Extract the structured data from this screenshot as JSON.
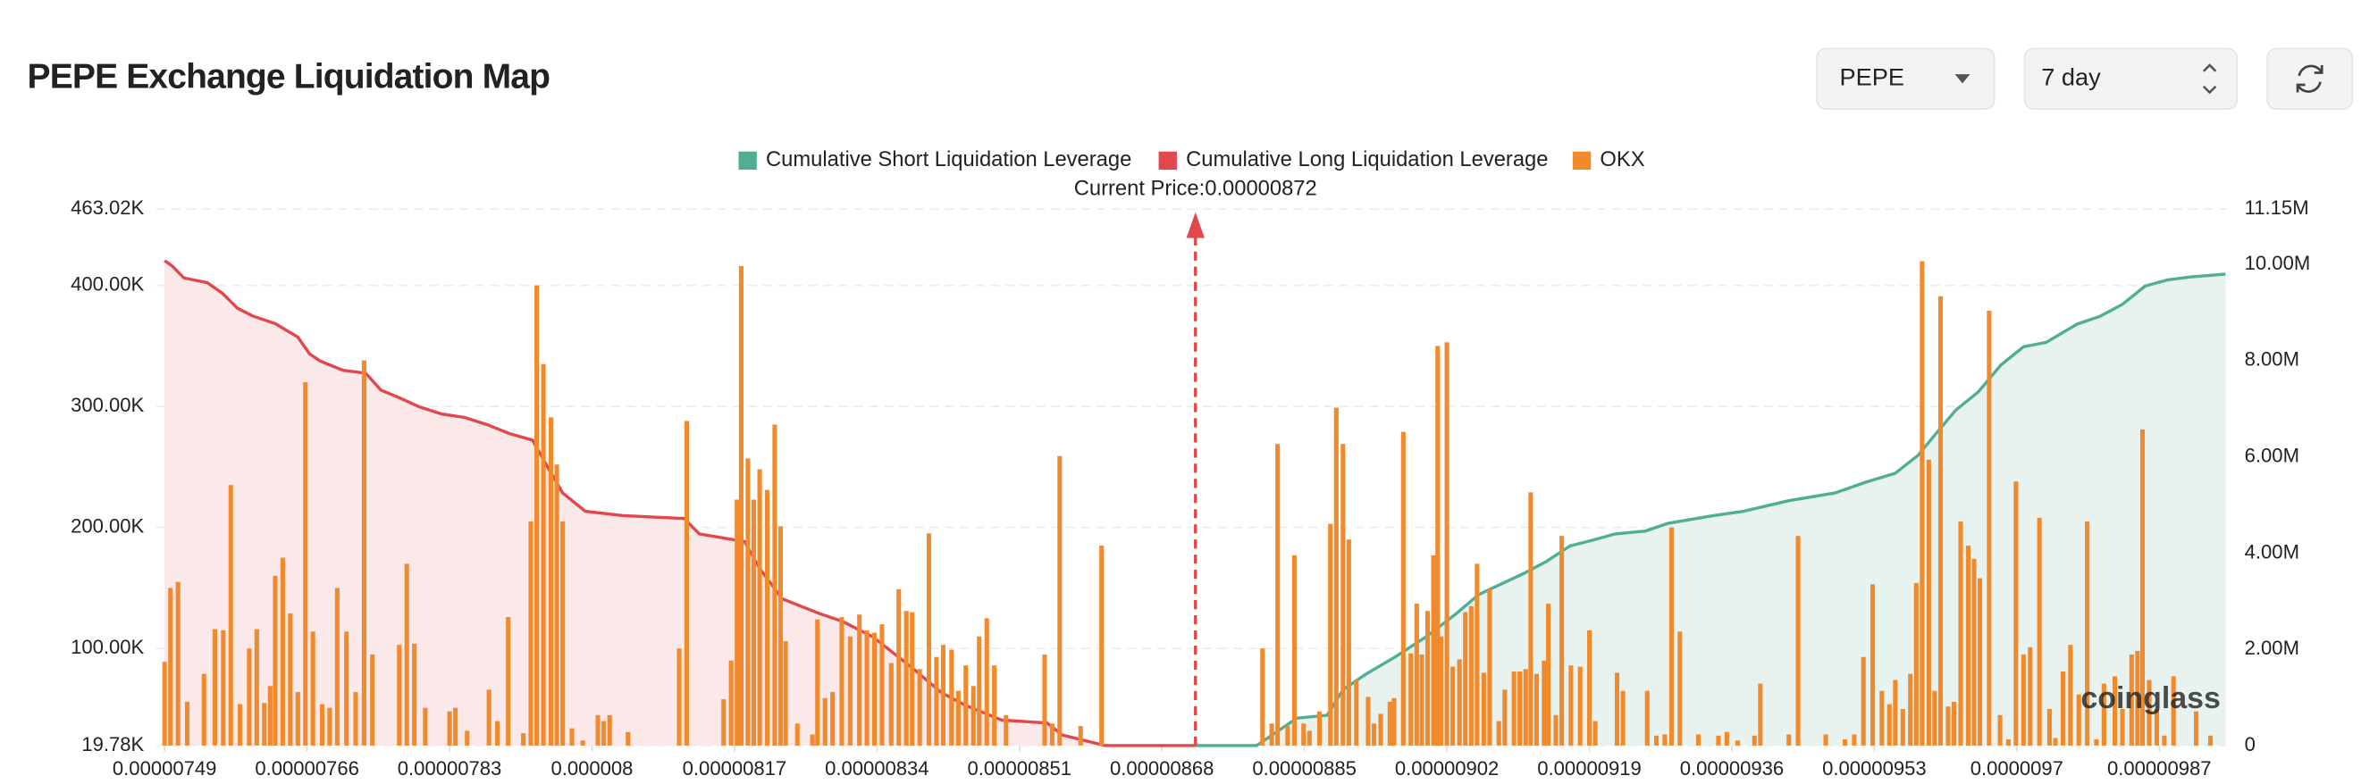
{
  "chart_data": {
    "type": "combo",
    "title": "PEPE Exchange Liquidation Map",
    "current_price": {
      "value": 8.72e-06,
      "label": "Current Price:0.00000872"
    },
    "watermark": "coinglass",
    "xlim": [
      7.48e-06,
      9.95e-06
    ],
    "xticks": [
      {
        "value": 7.49e-06,
        "label": "0.00000749"
      },
      {
        "value": 7.66e-06,
        "label": "0.00000766"
      },
      {
        "value": 7.83e-06,
        "label": "0.00000783"
      },
      {
        "value": 8e-06,
        "label": "0.000008"
      },
      {
        "value": 8.17e-06,
        "label": "0.00000817"
      },
      {
        "value": 8.34e-06,
        "label": "0.00000834"
      },
      {
        "value": 8.51e-06,
        "label": "0.00000851"
      },
      {
        "value": 8.68e-06,
        "label": "0.00000868"
      },
      {
        "value": 8.85e-06,
        "label": "0.00000885"
      },
      {
        "value": 9.02e-06,
        "label": "0.00000902"
      },
      {
        "value": 9.19e-06,
        "label": "0.00000919"
      },
      {
        "value": 9.36e-06,
        "label": "0.00000936"
      },
      {
        "value": 9.53e-06,
        "label": "0.00000953"
      },
      {
        "value": 9.7e-06,
        "label": "0.0000097"
      },
      {
        "value": 9.87e-06,
        "label": "0.00000987"
      }
    ],
    "ylim": [
      19780,
      463020
    ],
    "yticks": [
      {
        "value": 19780,
        "label": "19.78K"
      },
      {
        "value": 100000,
        "label": "100.00K"
      },
      {
        "value": 200000,
        "label": "200.00K"
      },
      {
        "value": 300000,
        "label": "300.00K"
      },
      {
        "value": 400000,
        "label": "400.00K"
      },
      {
        "value": 463020,
        "label": "463.02K"
      }
    ],
    "y2lim": [
      0,
      11150000
    ],
    "y2ticks": [
      0,
      {
        "value": 2000000,
        "label": "2.00M"
      },
      {
        "value": 4000000,
        "label": "4.00M"
      },
      {
        "value": 6000000,
        "label": "6.00M"
      },
      {
        "value": 8000000,
        "label": "8.00M"
      },
      {
        "value": 10000000,
        "label": "10.00M"
      },
      {
        "value": 11150000,
        "label": "11.15M"
      }
    ],
    "grid": true,
    "series": [
      {
        "name": "Cumulative Short Liquidation Leverage",
        "type": "line",
        "axis": "y2",
        "color": "#4fae93",
        "fill": "#e8f3f0",
        "x": [
          8.72e-06,
          8.793e-06,
          8.814e-06,
          8.841e-06,
          8.877e-06,
          8.896e-06,
          8.923e-06,
          8.959e-06,
          8.995e-06,
          9.031e-06,
          9.058e-06,
          9.085e-06,
          9.112e-06,
          9.139e-06,
          9.167e-06,
          9.194e-06,
          9.221e-06,
          9.257e-06,
          9.284e-06,
          9.338e-06,
          9.374e-06,
          9.428e-06,
          9.483e-06,
          9.519e-06,
          9.555e-06,
          9.582e-06,
          9.6e-06,
          9.627e-06,
          9.654e-06,
          9.681e-06,
          9.708e-06,
          9.735e-06,
          9.772e-06,
          9.799e-06,
          9.826e-06,
          9.853e-06,
          9.88e-06,
          9.907e-06,
          9.949e-06
        ],
        "values": [
          0,
          0,
          250000,
          570000,
          630000,
          1160000,
          1480000,
          1850000,
          2260000,
          2740000,
          3140000,
          3360000,
          3580000,
          3830000,
          4150000,
          4270000,
          4400000,
          4460000,
          4620000,
          4780000,
          4870000,
          5090000,
          5250000,
          5470000,
          5660000,
          6030000,
          6410000,
          6970000,
          7350000,
          7910000,
          8290000,
          8380000,
          8760000,
          8920000,
          9170000,
          9550000,
          9680000,
          9740000,
          9800000
        ]
      },
      {
        "name": "Cumulative Long Liquidation Leverage",
        "type": "line",
        "axis": "y2",
        "color": "#e2474b",
        "fill": "#fbe9ea",
        "x": [
          7.49e-06,
          7.499e-06,
          7.513e-06,
          7.541e-06,
          7.559e-06,
          7.577e-06,
          7.595e-06,
          7.622e-06,
          7.649e-06,
          7.663e-06,
          7.676e-06,
          7.703e-06,
          7.73e-06,
          7.748e-06,
          7.77e-06,
          7.794e-06,
          7.821e-06,
          7.848e-06,
          7.875e-06,
          7.902e-06,
          7.929e-06,
          7.947e-06,
          7.965e-06,
          7.992e-06,
          8.037e-06,
          8.11e-06,
          8.128e-06,
          8.182e-06,
          8.2e-06,
          8.227e-06,
          8.272e-06,
          8.299e-06,
          8.335e-06,
          8.381e-06,
          8.417e-06,
          8.444e-06,
          8.489e-06,
          8.543e-06,
          8.561e-06,
          8.612e-06,
          8.72e-06
        ],
        "values": [
          10080000,
          9970000,
          9720000,
          9620000,
          9400000,
          9090000,
          8930000,
          8770000,
          8490000,
          8140000,
          7990000,
          7800000,
          7740000,
          7390000,
          7230000,
          7040000,
          6890000,
          6820000,
          6670000,
          6480000,
          6350000,
          5790000,
          5250000,
          4870000,
          4780000,
          4720000,
          4400000,
          4240000,
          3680000,
          3050000,
          2740000,
          2580000,
          2260000,
          1630000,
          1100000,
          850000,
          530000,
          470000,
          220000,
          0,
          0
        ]
      },
      {
        "name": "OKX",
        "type": "bar",
        "color": "#f08a2d",
        "x": [
          7.49e-06,
          7.497e-06,
          7.506e-06,
          7.517e-06,
          7.537e-06,
          7.55e-06,
          7.56e-06,
          7.569e-06,
          7.58e-06,
          7.591e-06,
          7.6e-06,
          7.609e-06,
          7.616e-06,
          7.622e-06,
          7.631e-06,
          7.64e-06,
          7.649e-06,
          7.658e-06,
          7.667e-06,
          7.678e-06,
          7.687e-06,
          7.696e-06,
          7.707e-06,
          7.718e-06,
          7.728e-06,
          7.738e-06,
          7.77e-06,
          7.779e-06,
          7.788e-06,
          7.801e-06,
          7.83e-06,
          7.837e-06,
          7.851e-06,
          7.877e-06,
          7.887e-06,
          7.9e-06,
          7.918e-06,
          7.927e-06,
          7.934e-06,
          7.942e-06,
          7.951e-06,
          7.958e-06,
          7.965e-06,
          7.976e-06,
          7.989e-06,
          8.007e-06,
          8.014e-06,
          8.021e-06,
          8.043e-06,
          8.104e-06,
          8.113e-06,
          8.157e-06,
          8.166e-06,
          8.173e-06,
          8.178e-06,
          8.186e-06,
          8.193e-06,
          8.2e-06,
          8.209e-06,
          8.218e-06,
          8.225e-06,
          8.231e-06,
          8.245e-06,
          8.263e-06,
          8.269e-06,
          8.278e-06,
          8.287e-06,
          8.298e-06,
          8.308e-06,
          8.319e-06,
          8.328e-06,
          8.337e-06,
          8.346e-06,
          8.357e-06,
          8.366e-06,
          8.375e-06,
          8.382e-06,
          8.391e-06,
          8.402e-06,
          8.411e-06,
          8.419e-06,
          8.429e-06,
          8.437e-06,
          8.446e-06,
          8.455e-06,
          8.462e-06,
          8.471e-06,
          8.48e-06,
          8.494e-06,
          8.54e-06,
          8.549e-06,
          8.558e-06,
          8.583e-06,
          8.608e-06,
          8.8e-06,
          8.811e-06,
          8.818e-06,
          8.83e-06,
          8.838e-06,
          8.849e-06,
          8.856e-06,
          8.868e-06,
          8.881e-06,
          8.888e-06,
          8.896e-06,
          8.903e-06,
          8.912e-06,
          8.926e-06,
          8.933e-06,
          8.941e-06,
          8.952e-06,
          8.957e-06,
          8.968e-06,
          8.977e-06,
          8.984e-06,
          8.99e-06,
          8.997e-06,
          9.004e-06,
          9.009e-06,
          9.013e-06,
          9.02e-06,
          9.027e-06,
          9.035e-06,
          9.042e-06,
          9.049e-06,
          9.056e-06,
          9.064e-06,
          9.071e-06,
          9.082e-06,
          9.089e-06,
          9.1e-06,
          9.107e-06,
          9.114e-06,
          9.12e-06,
          9.127e-06,
          9.136e-06,
          9.141e-06,
          9.15e-06,
          9.157e-06,
          9.168e-06,
          9.179e-06,
          9.19e-06,
          9.197e-06,
          9.223e-06,
          9.23e-06,
          9.259e-06,
          9.27e-06,
          9.28e-06,
          9.288e-06,
          9.298e-06,
          9.32e-06,
          9.344e-06,
          9.354e-06,
          9.367e-06,
          9.387e-06,
          9.394e-06,
          9.428e-06,
          9.439e-06,
          9.472e-06,
          9.495e-06,
          9.506e-06,
          9.517e-06,
          9.528e-06,
          9.539e-06,
          9.548e-06,
          9.555e-06,
          9.564e-06,
          9.573e-06,
          9.58e-06,
          9.587e-06,
          9.595e-06,
          9.602e-06,
          9.609e-06,
          9.618e-06,
          9.625e-06,
          9.633e-06,
          9.642e-06,
          9.649e-06,
          9.656e-06,
          9.667e-06,
          9.68e-06,
          9.69e-06,
          9.699e-06,
          9.708e-06,
          9.716e-06,
          9.727e-06,
          9.739e-06,
          9.746e-06,
          9.755e-06,
          9.764e-06,
          9.774e-06,
          9.784e-06,
          9.795e-06,
          9.804e-06,
          9.817e-06,
          9.826e-06,
          9.837e-06,
          9.844e-06,
          9.85e-06,
          9.858e-06,
          9.867e-06,
          9.876e-06,
          9.887e-06,
          9.914e-06,
          9.931e-06
        ],
        "values": [
          89000,
          150000,
          155000,
          56000,
          79000,
          116000,
          115000,
          235000,
          54000,
          100000,
          116000,
          55000,
          69000,
          160000,
          175000,
          129000,
          64000,
          320000,
          114000,
          54000,
          51000,
          150000,
          114000,
          64000,
          338000,
          95000,
          103000,
          170000,
          104000,
          51000,
          48000,
          51000,
          32000,
          66000,
          40000,
          126000,
          30000,
          205000,
          400000,
          335000,
          291000,
          252000,
          205000,
          34000,
          24000,
          45000,
          40000,
          45000,
          31000,
          100000,
          288000,
          58000,
          90000,
          223000,
          416000,
          257000,
          223000,
          248000,
          231000,
          285000,
          201000,
          106000,
          38000,
          29000,
          124000,
          59000,
          64000,
          126000,
          110000,
          128000,
          115000,
          113000,
          120000,
          88000,
          149000,
          131000,
          130000,
          83000,
          195000,
          93000,
          103000,
          99000,
          65000,
          86000,
          69000,
          110000,
          125000,
          86000,
          45000,
          95000,
          38000,
          259000,
          36000,
          185000,
          100000,
          38000,
          269000,
          36000,
          177000,
          38000,
          32000,
          48000,
          203000,
          299000,
          269000,
          190000,
          74000,
          60000,
          38000,
          46000,
          56000,
          59000,
          279000,
          96000,
          137000,
          95000,
          131000,
          177000,
          350000,
          110000,
          353000,
          85000,
          91000,
          130000,
          135000,
          170000,
          80000,
          149000,
          40000,
          66000,
          81000,
          81000,
          83000,
          229000,
          79000,
          90000,
          137000,
          45000,
          193000,
          86000,
          85000,
          115000,
          40000,
          80000,
          65000,
          65000,
          28000,
          29000,
          200000,
          114000,
          29000,
          28000,
          31000,
          24000,
          28000,
          71000,
          29000,
          193000,
          29000,
          25000,
          29000,
          93000,
          153000,
          65000,
          54000,
          74000,
          50000,
          79000,
          154000,
          420000,
          256000,
          65000,
          391000,
          52000,
          56000,
          205000,
          185000,
          174000,
          158000,
          379000,
          45000,
          25000,
          238000,
          95000,
          101000,
          208000,
          50000,
          26000,
          81000,
          103000,
          62000,
          205000,
          25000,
          71000,
          77000,
          50000,
          95000,
          98000,
          281000,
          74000,
          50000,
          28000,
          77000,
          48000,
          28000
        ]
      }
    ]
  },
  "controls": {
    "coin": "PEPE",
    "period": "7 day"
  }
}
